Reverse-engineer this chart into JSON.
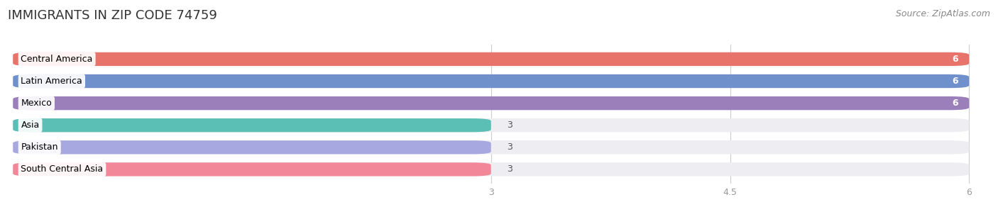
{
  "title": "IMMIGRANTS IN ZIP CODE 74759",
  "source": "Source: ZipAtlas.com",
  "categories": [
    "Central America",
    "Latin America",
    "Mexico",
    "Asia",
    "Pakistan",
    "South Central Asia"
  ],
  "values": [
    6,
    6,
    6,
    3,
    3,
    3
  ],
  "bar_colors": [
    "#E8736A",
    "#7090CC",
    "#9B7FBB",
    "#5BBFB5",
    "#A8A8E0",
    "#F2879A"
  ],
  "bar_bg_color": "#EDEDF2",
  "xmin": 0,
  "xmax": 6,
  "xticks": [
    3,
    4.5,
    6
  ],
  "value_label_color_full": "#FFFFFF",
  "value_label_color_partial": "#555555",
  "background_color": "#FFFFFF",
  "title_fontsize": 13,
  "source_fontsize": 9,
  "bar_label_fontsize": 9,
  "bar_height": 0.62,
  "figsize": [
    14.06,
    3.16
  ],
  "dpi": 100,
  "grid_color": "#CCCCCC",
  "tick_color": "#999999"
}
